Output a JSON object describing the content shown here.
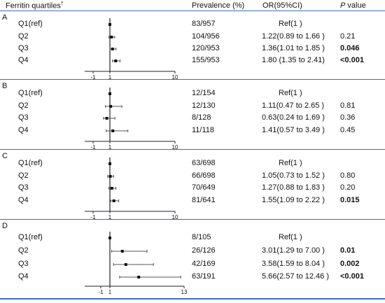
{
  "header": {
    "col_quartile": "Ferritin quartiles",
    "col_quartile_mark": "†",
    "col_prevalence": "Prevalence (%)",
    "col_or": "OR(95%CI)",
    "col_p_italic": "P",
    "col_p_rest": " value"
  },
  "colors": {
    "rule": "#3a6fb5",
    "axis": "#222222",
    "point": "#111111",
    "ci": "#555555"
  },
  "chart_data": {
    "type": "forest",
    "panels": [
      {
        "label": "A",
        "xlim": [
          -1,
          10
        ],
        "ticks": [
          "-1",
          "1",
          "10"
        ],
        "rows": [
          {
            "quartile": "Q1(ref)",
            "prevalence": "83/957",
            "or_text": "Ref(1 )",
            "p": "",
            "p_bold": false,
            "or": 1,
            "lo": 1,
            "hi": 1
          },
          {
            "quartile": "Q2",
            "prevalence": "104/956",
            "or_text": "1.22(0.89 to 1.66 )",
            "p": "0.21",
            "p_bold": false,
            "or": 1.22,
            "lo": 0.89,
            "hi": 1.66
          },
          {
            "quartile": "Q3",
            "prevalence": "120/953",
            "or_text": "1.36(1.01 to 1.85 )",
            "p": "0.046",
            "p_bold": true,
            "or": 1.36,
            "lo": 1.01,
            "hi": 1.85
          },
          {
            "quartile": "Q4",
            "prevalence": "155/953",
            "or_text": "1.80 (1.35 to 2.41)",
            "p": "<0.001",
            "p_bold": true,
            "or": 1.8,
            "lo": 1.35,
            "hi": 2.41
          }
        ]
      },
      {
        "label": "B",
        "xlim": [
          -1,
          10
        ],
        "ticks": [
          "-1",
          "1",
          "10"
        ],
        "rows": [
          {
            "quartile": "Q1(ref)",
            "prevalence": "12/154",
            "or_text": "Ref(1 )",
            "p": "",
            "p_bold": false,
            "or": 1,
            "lo": 1,
            "hi": 1
          },
          {
            "quartile": "Q2",
            "prevalence": "12/130",
            "or_text": "1.11(0.47 to 2.65 )",
            "p": "0.81",
            "p_bold": false,
            "or": 1.11,
            "lo": 0.47,
            "hi": 2.65
          },
          {
            "quartile": "Q3",
            "prevalence": "8/128",
            "or_text": "0.63(0.24 to 1.69 )",
            "p": "0.36",
            "p_bold": false,
            "or": 0.63,
            "lo": 0.24,
            "hi": 1.69
          },
          {
            "quartile": "Q4",
            "prevalence": "11/118",
            "or_text": "1.41(0.57 to 3.49 )",
            "p": "0.45",
            "p_bold": false,
            "or": 1.41,
            "lo": 0.57,
            "hi": 3.49
          }
        ]
      },
      {
        "label": "C",
        "xlim": [
          -1,
          10
        ],
        "ticks": [
          "-1",
          "1",
          "10"
        ],
        "rows": [
          {
            "quartile": "Q1(ref)",
            "prevalence": "63/698",
            "or_text": "Ref(1 )",
            "p": "",
            "p_bold": false,
            "or": 1,
            "lo": 1,
            "hi": 1
          },
          {
            "quartile": "Q2",
            "prevalence": "66/698",
            "or_text": "1.05(0.73 to 1.52 )",
            "p": "0.80",
            "p_bold": false,
            "or": 1.05,
            "lo": 0.73,
            "hi": 1.52
          },
          {
            "quartile": "Q3",
            "prevalence": "70/649",
            "or_text": "1.27(0.88 to 1.83 )",
            "p": "0.20",
            "p_bold": false,
            "or": 1.27,
            "lo": 0.88,
            "hi": 1.83
          },
          {
            "quartile": "Q4",
            "prevalence": "81/641",
            "or_text": "1.55(1.09 to 2.22 )",
            "p": "0.015",
            "p_bold": true,
            "or": 1.55,
            "lo": 1.09,
            "hi": 2.22
          }
        ]
      },
      {
        "label": "D",
        "xlim": [
          -1,
          13
        ],
        "ticks": [
          "-1",
          "1",
          "13"
        ],
        "rows": [
          {
            "quartile": "Q1(ref)",
            "prevalence": "8/105",
            "or_text": "Ref(1 )",
            "p": "",
            "p_bold": false,
            "or": 1,
            "lo": 1,
            "hi": 1
          },
          {
            "quartile": "Q2",
            "prevalence": "26/126",
            "or_text": "3.01(1.29 to 7.00 )",
            "p": "0.01",
            "p_bold": true,
            "or": 3.01,
            "lo": 1.29,
            "hi": 7.0
          },
          {
            "quartile": "Q3",
            "prevalence": "42/169",
            "or_text": "3.58(1.59 to 8.04 )",
            "p": "0.002",
            "p_bold": true,
            "or": 3.58,
            "lo": 1.59,
            "hi": 8.04
          },
          {
            "quartile": "Q4",
            "prevalence": "63/191",
            "or_text": "5.66(2.57 to 12.46 )",
            "p": "<0.001",
            "p_bold": true,
            "or": 5.66,
            "lo": 2.57,
            "hi": 12.46
          }
        ]
      }
    ]
  }
}
